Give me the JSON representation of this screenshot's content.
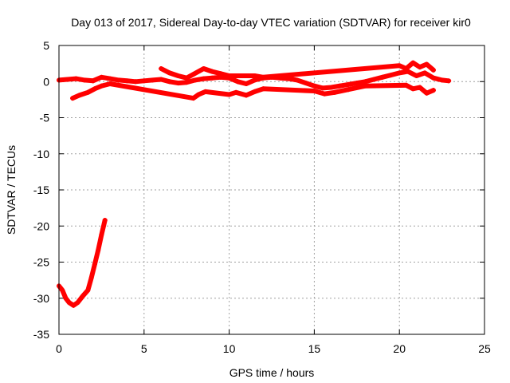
{
  "chart_data": {
    "type": "scatter",
    "title": "Day 013 of 2017, Sidereal Day-to-day VTEC variation (SDTVAR) for receiver kir0",
    "xlabel": "GPS time / hours",
    "ylabel": "SDTVAR / TECUs",
    "xlim": [
      0,
      25
    ],
    "ylim": [
      -35,
      5
    ],
    "xticks": [
      0,
      5,
      10,
      15,
      20,
      25
    ],
    "yticks": [
      5,
      0,
      -5,
      -10,
      -15,
      -20,
      -25,
      -30,
      -35
    ],
    "grid": true,
    "marker_color": "#ff0000",
    "series": [
      {
        "name": "main-band",
        "points": [
          [
            0,
            0.2
          ],
          [
            0.5,
            0.3
          ],
          [
            1,
            0.4
          ],
          [
            1.5,
            0.2
          ],
          [
            2,
            0.1
          ],
          [
            2.5,
            0.6
          ],
          [
            3,
            0.4
          ],
          [
            3.5,
            0.2
          ],
          [
            4,
            0.1
          ],
          [
            4.5,
            0.0
          ],
          [
            5,
            0.1
          ],
          [
            5.5,
            0.2
          ],
          [
            6,
            0.3
          ],
          [
            6.5,
            0.0
          ],
          [
            7,
            -0.2
          ],
          [
            7.5,
            -0.1
          ],
          [
            8,
            0.2
          ],
          [
            8.5,
            0.4
          ],
          [
            9,
            0.5
          ],
          [
            9.5,
            0.6
          ],
          [
            10,
            0.5
          ],
          [
            10.5,
            0.0
          ],
          [
            11,
            -0.3
          ],
          [
            11.5,
            0.2
          ],
          [
            12,
            0.5
          ],
          [
            12.5,
            0.6
          ],
          [
            13,
            0.5
          ],
          [
            13.5,
            0.4
          ],
          [
            14,
            0.2
          ],
          [
            14.5,
            -0.2
          ],
          [
            15,
            -0.6
          ],
          [
            15.5,
            -0.9
          ],
          [
            16,
            -0.8
          ],
          [
            16.5,
            -0.6
          ],
          [
            17,
            -0.4
          ],
          [
            17.5,
            -0.2
          ],
          [
            18,
            0.0
          ],
          [
            18.5,
            0.3
          ],
          [
            19,
            0.6
          ],
          [
            19.5,
            0.9
          ],
          [
            20,
            1.2
          ],
          [
            20.5,
            1.4
          ],
          [
            21,
            0.8
          ],
          [
            21.5,
            1.2
          ],
          [
            22,
            0.5
          ],
          [
            22.5,
            0.2
          ],
          [
            22.9,
            0.1
          ]
        ]
      },
      {
        "name": "upper-arcs",
        "points": [
          [
            6,
            1.8
          ],
          [
            6.5,
            1.2
          ],
          [
            7,
            0.8
          ],
          [
            7.5,
            0.5
          ],
          [
            8.5,
            1.8
          ],
          [
            9,
            1.4
          ],
          [
            9.5,
            1.1
          ],
          [
            10,
            0.8
          ],
          [
            11.5,
            0.8
          ],
          [
            12,
            0.6
          ],
          [
            20,
            2.2
          ],
          [
            20.4,
            1.8
          ],
          [
            20.8,
            2.6
          ],
          [
            21.2,
            2.0
          ],
          [
            21.6,
            2.4
          ],
          [
            22,
            1.6
          ]
        ]
      },
      {
        "name": "lower-arcs",
        "points": [
          [
            0.8,
            -2.3
          ],
          [
            1.2,
            -1.9
          ],
          [
            1.7,
            -1.5
          ],
          [
            2.1,
            -1.0
          ],
          [
            2.5,
            -0.6
          ],
          [
            3,
            -0.3
          ],
          [
            7.9,
            -2.3
          ],
          [
            8.2,
            -1.8
          ],
          [
            8.6,
            -1.4
          ],
          [
            10,
            -1.8
          ],
          [
            10.4,
            -1.5
          ],
          [
            11,
            -1.9
          ],
          [
            11.5,
            -1.4
          ],
          [
            12,
            -1.0
          ],
          [
            15,
            -1.3
          ],
          [
            15.6,
            -1.7
          ],
          [
            16.2,
            -1.5
          ],
          [
            17,
            -1.1
          ],
          [
            18,
            -0.6
          ],
          [
            20.4,
            -0.5
          ],
          [
            20.8,
            -1.0
          ],
          [
            21.2,
            -0.8
          ],
          [
            21.6,
            -1.6
          ],
          [
            22,
            -1.2
          ]
        ]
      },
      {
        "name": "low-arc",
        "points": [
          [
            0,
            -28.3
          ],
          [
            0.2,
            -28.9
          ],
          [
            0.4,
            -30.0
          ],
          [
            0.6,
            -30.6
          ],
          [
            0.85,
            -31.0
          ],
          [
            1.1,
            -30.6
          ],
          [
            1.4,
            -29.7
          ],
          [
            1.7,
            -28.9
          ],
          [
            1.9,
            -27.2
          ],
          [
            2.1,
            -25.3
          ],
          [
            2.3,
            -23.4
          ],
          [
            2.5,
            -21.2
          ],
          [
            2.7,
            -19.2
          ]
        ]
      }
    ]
  }
}
